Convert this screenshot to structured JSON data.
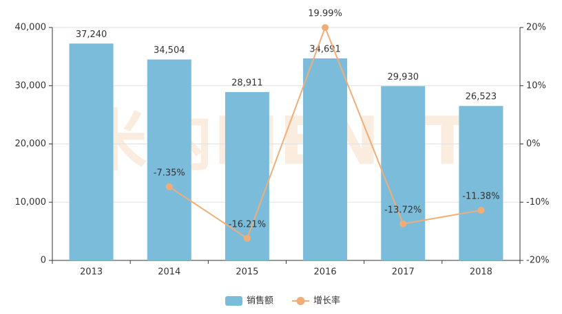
{
  "chart_data": {
    "type": "bar",
    "watermark": "米内MENET",
    "categories": [
      "2013",
      "2014",
      "2015",
      "2016",
      "2017",
      "2018"
    ],
    "series": [
      {
        "name": "销售额",
        "type": "bar",
        "color": "#7bbcdb",
        "values": [
          37240,
          34504,
          28911,
          34691,
          29930,
          26523
        ],
        "value_labels": [
          "37,240",
          "34,504",
          "28,911",
          "34,691",
          "29,930",
          "26,523"
        ]
      },
      {
        "name": "增长率",
        "type": "line",
        "axis": "y2",
        "color": "#f0ad78",
        "values": [
          null,
          -7.35,
          -16.21,
          19.99,
          -13.72,
          -11.38
        ],
        "value_labels": [
          null,
          "-7.35%",
          "-16.21%",
          "19.99%",
          "-13.72%",
          "-11.38%"
        ]
      }
    ],
    "ylim": [
      0,
      40000
    ],
    "yticks": [
      0,
      {
        "value": 10000,
        "label": "10,000"
      },
      {
        "value": 20000,
        "label": "20,000"
      },
      {
        "value": 30000,
        "label": "30,000"
      },
      {
        "value": 40000,
        "label": "40,000"
      }
    ],
    "y2lim": [
      -20,
      20
    ],
    "y2ticks": [
      {
        "value": -20,
        "label": "-20%"
      },
      {
        "value": -10,
        "label": "-10%"
      },
      {
        "value": 0,
        "label": "0%"
      },
      {
        "value": 10,
        "label": "10%"
      },
      {
        "value": 20,
        "label": "20%"
      }
    ],
    "grid": true,
    "legend": "bottom"
  }
}
